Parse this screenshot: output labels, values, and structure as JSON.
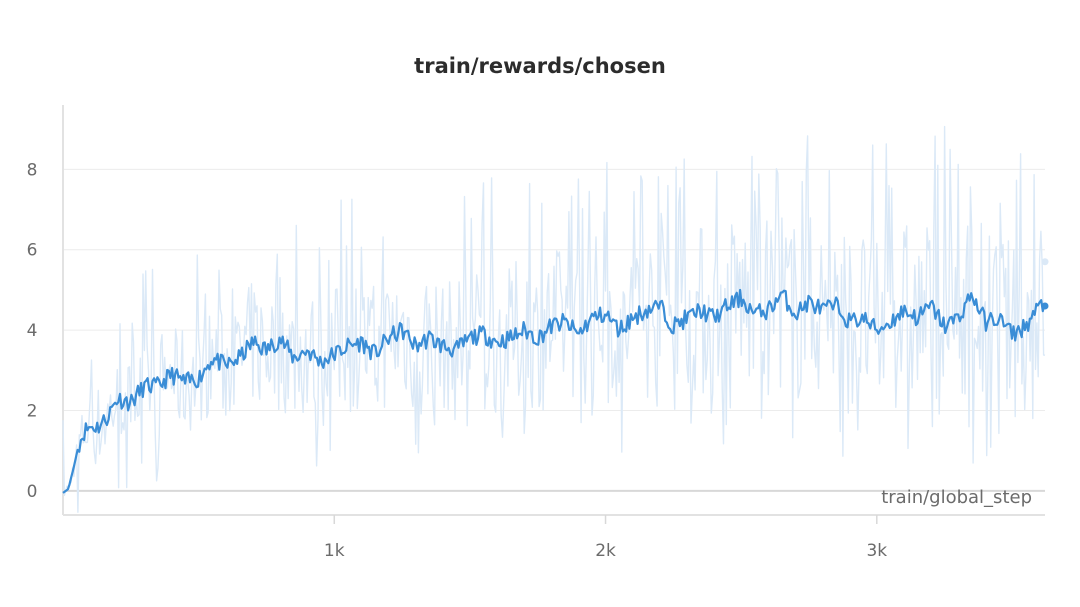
{
  "chart_data": {
    "type": "line",
    "title": "train/rewards/chosen",
    "xlabel": "train/global_step",
    "ylabel": "",
    "xlim": [
      0,
      3620
    ],
    "ylim": [
      -0.6,
      9.6
    ],
    "x_ticks": [
      {
        "value": 1000,
        "label": "1k"
      },
      {
        "value": 2000,
        "label": "2k"
      },
      {
        "value": 3000,
        "label": "3k"
      }
    ],
    "y_ticks": [
      {
        "value": 0,
        "label": "0"
      },
      {
        "value": 2,
        "label": "2"
      },
      {
        "value": 4,
        "label": "4"
      },
      {
        "value": 6,
        "label": "6"
      },
      {
        "value": 8,
        "label": "8"
      }
    ],
    "grid": true,
    "colors": {
      "smoothed": "#3a8dd6",
      "raw": "#dbe9f7"
    },
    "series": [
      {
        "style": "smoothed",
        "x": [
          0,
          20,
          40,
          60,
          80,
          100,
          130,
          160,
          200,
          250,
          300,
          350,
          400,
          450,
          500,
          550,
          600,
          650,
          700,
          750,
          800,
          850,
          900,
          950,
          1000,
          1050,
          1100,
          1150,
          1200,
          1250,
          1300,
          1350,
          1400,
          1450,
          1500,
          1550,
          1600,
          1650,
          1700,
          1750,
          1800,
          1850,
          1900,
          1950,
          2000,
          2050,
          2100,
          2150,
          2200,
          2250,
          2300,
          2350,
          2400,
          2450,
          2500,
          2550,
          2600,
          2650,
          2700,
          2750,
          2800,
          2850,
          2900,
          2950,
          3000,
          3050,
          3100,
          3150,
          3200,
          3250,
          3300,
          3350,
          3400,
          3450,
          3500,
          3550,
          3600,
          3620
        ],
        "y": [
          -0.05,
          0.05,
          0.6,
          1.2,
          1.5,
          1.6,
          1.6,
          1.8,
          2.3,
          2.2,
          2.6,
          2.6,
          2.9,
          2.7,
          2.8,
          3.3,
          3.1,
          3.3,
          3.7,
          3.5,
          3.8,
          3.3,
          3.5,
          3.2,
          3.4,
          3.6,
          3.7,
          3.4,
          3.8,
          4.0,
          3.6,
          3.8,
          3.6,
          3.5,
          3.8,
          3.9,
          3.7,
          3.8,
          4.0,
          3.8,
          4.1,
          4.2,
          3.9,
          4.3,
          4.4,
          4.0,
          4.3,
          4.5,
          4.6,
          4.1,
          4.3,
          4.5,
          4.3,
          4.6,
          4.8,
          4.4,
          4.5,
          4.9,
          4.4,
          4.7,
          4.5,
          4.6,
          4.2,
          4.3,
          4.0,
          4.2,
          4.5,
          4.3,
          4.6,
          4.1,
          4.3,
          4.9,
          4.2,
          4.3,
          3.9,
          4.1,
          4.6,
          4.6
        ]
      },
      {
        "style": "raw",
        "x": [
          0,
          40,
          80,
          120,
          160,
          200,
          240,
          280,
          320,
          360,
          400,
          440,
          480,
          520,
          560,
          600,
          640,
          680,
          720,
          760,
          800,
          840,
          880,
          920,
          960,
          1000,
          1040,
          1080,
          1120,
          1160,
          1200,
          1240,
          1280,
          1320,
          1360,
          1400,
          1440,
          1480,
          1520,
          1560,
          1600,
          1640,
          1680,
          1720,
          1760,
          1800,
          1840,
          1880,
          1920,
          1960,
          2000,
          2040,
          2080,
          2120,
          2160,
          2200,
          2240,
          2280,
          2320,
          2360,
          2400,
          2440,
          2480,
          2520,
          2560,
          2600,
          2640,
          2680,
          2720,
          2760,
          2800,
          2840,
          2880,
          2920,
          2960,
          3000,
          3040,
          3080,
          3120,
          3160,
          3200,
          3240,
          3280,
          3320,
          3360,
          3400,
          3440,
          3480,
          3520,
          3560,
          3600,
          3620
        ],
        "y_low": [
          -0.2,
          0.0,
          0.5,
          0.8,
          1.0,
          1.2,
          1.4,
          1.3,
          1.6,
          1.5,
          1.8,
          1.7,
          1.6,
          2.0,
          1.9,
          2.0,
          2.1,
          2.0,
          1.8,
          2.2,
          1.6,
          2.0,
          1.9,
          2.1,
          1.7,
          2.0,
          2.2,
          1.9,
          2.3,
          2.0,
          2.2,
          2.1,
          1.9,
          2.2,
          2.0,
          2.3,
          2.1,
          2.0,
          2.2,
          2.4,
          2.1,
          2.3,
          2.0,
          2.2,
          2.4,
          2.1,
          2.3,
          2.5,
          2.2,
          2.0,
          2.4,
          2.2,
          2.3,
          2.1,
          2.4,
          2.2,
          2.0,
          2.3,
          2.5,
          2.1,
          2.2,
          2.4,
          2.0,
          2.3,
          2.1,
          2.2,
          1.8,
          2.0,
          2.3,
          2.2,
          2.4,
          2.1,
          2.0,
          2.2,
          1.9,
          2.3,
          2.1,
          2.0,
          2.2,
          2.4,
          2.1,
          2.0,
          2.3,
          2.2,
          1.9,
          2.2,
          2.0,
          2.1,
          2.3,
          2.0,
          1.9,
          2.1
        ],
        "y_high": [
          0.1,
          0.6,
          2.2,
          3.1,
          3.5,
          3.3,
          3.8,
          3.6,
          4.0,
          4.5,
          4.2,
          4.8,
          4.4,
          4.6,
          5.0,
          5.2,
          4.9,
          5.3,
          5.6,
          5.2,
          5.8,
          5.4,
          5.6,
          5.7,
          5.5,
          5.8,
          6.0,
          5.6,
          5.9,
          6.1,
          5.7,
          6.0,
          5.8,
          6.2,
          6.0,
          5.8,
          6.1,
          6.3,
          6.0,
          6.2,
          6.4,
          6.1,
          6.3,
          6.5,
          6.2,
          6.4,
          6.6,
          6.3,
          6.5,
          6.8,
          6.5,
          6.3,
          6.7,
          6.9,
          6.6,
          6.8,
          7.0,
          6.7,
          6.9,
          7.1,
          6.8,
          7.0,
          7.2,
          6.9,
          7.1,
          7.3,
          7.0,
          7.2,
          7.4,
          7.1,
          7.2,
          7.0,
          7.3,
          7.1,
          6.9,
          7.2,
          7.4,
          7.1,
          7.3,
          7.0,
          7.2,
          7.4,
          7.1,
          7.0,
          7.3,
          7.5,
          7.1,
          7.2,
          7.0,
          6.9,
          6.8,
          6.7
        ],
        "end_point": 5.7
      }
    ]
  }
}
